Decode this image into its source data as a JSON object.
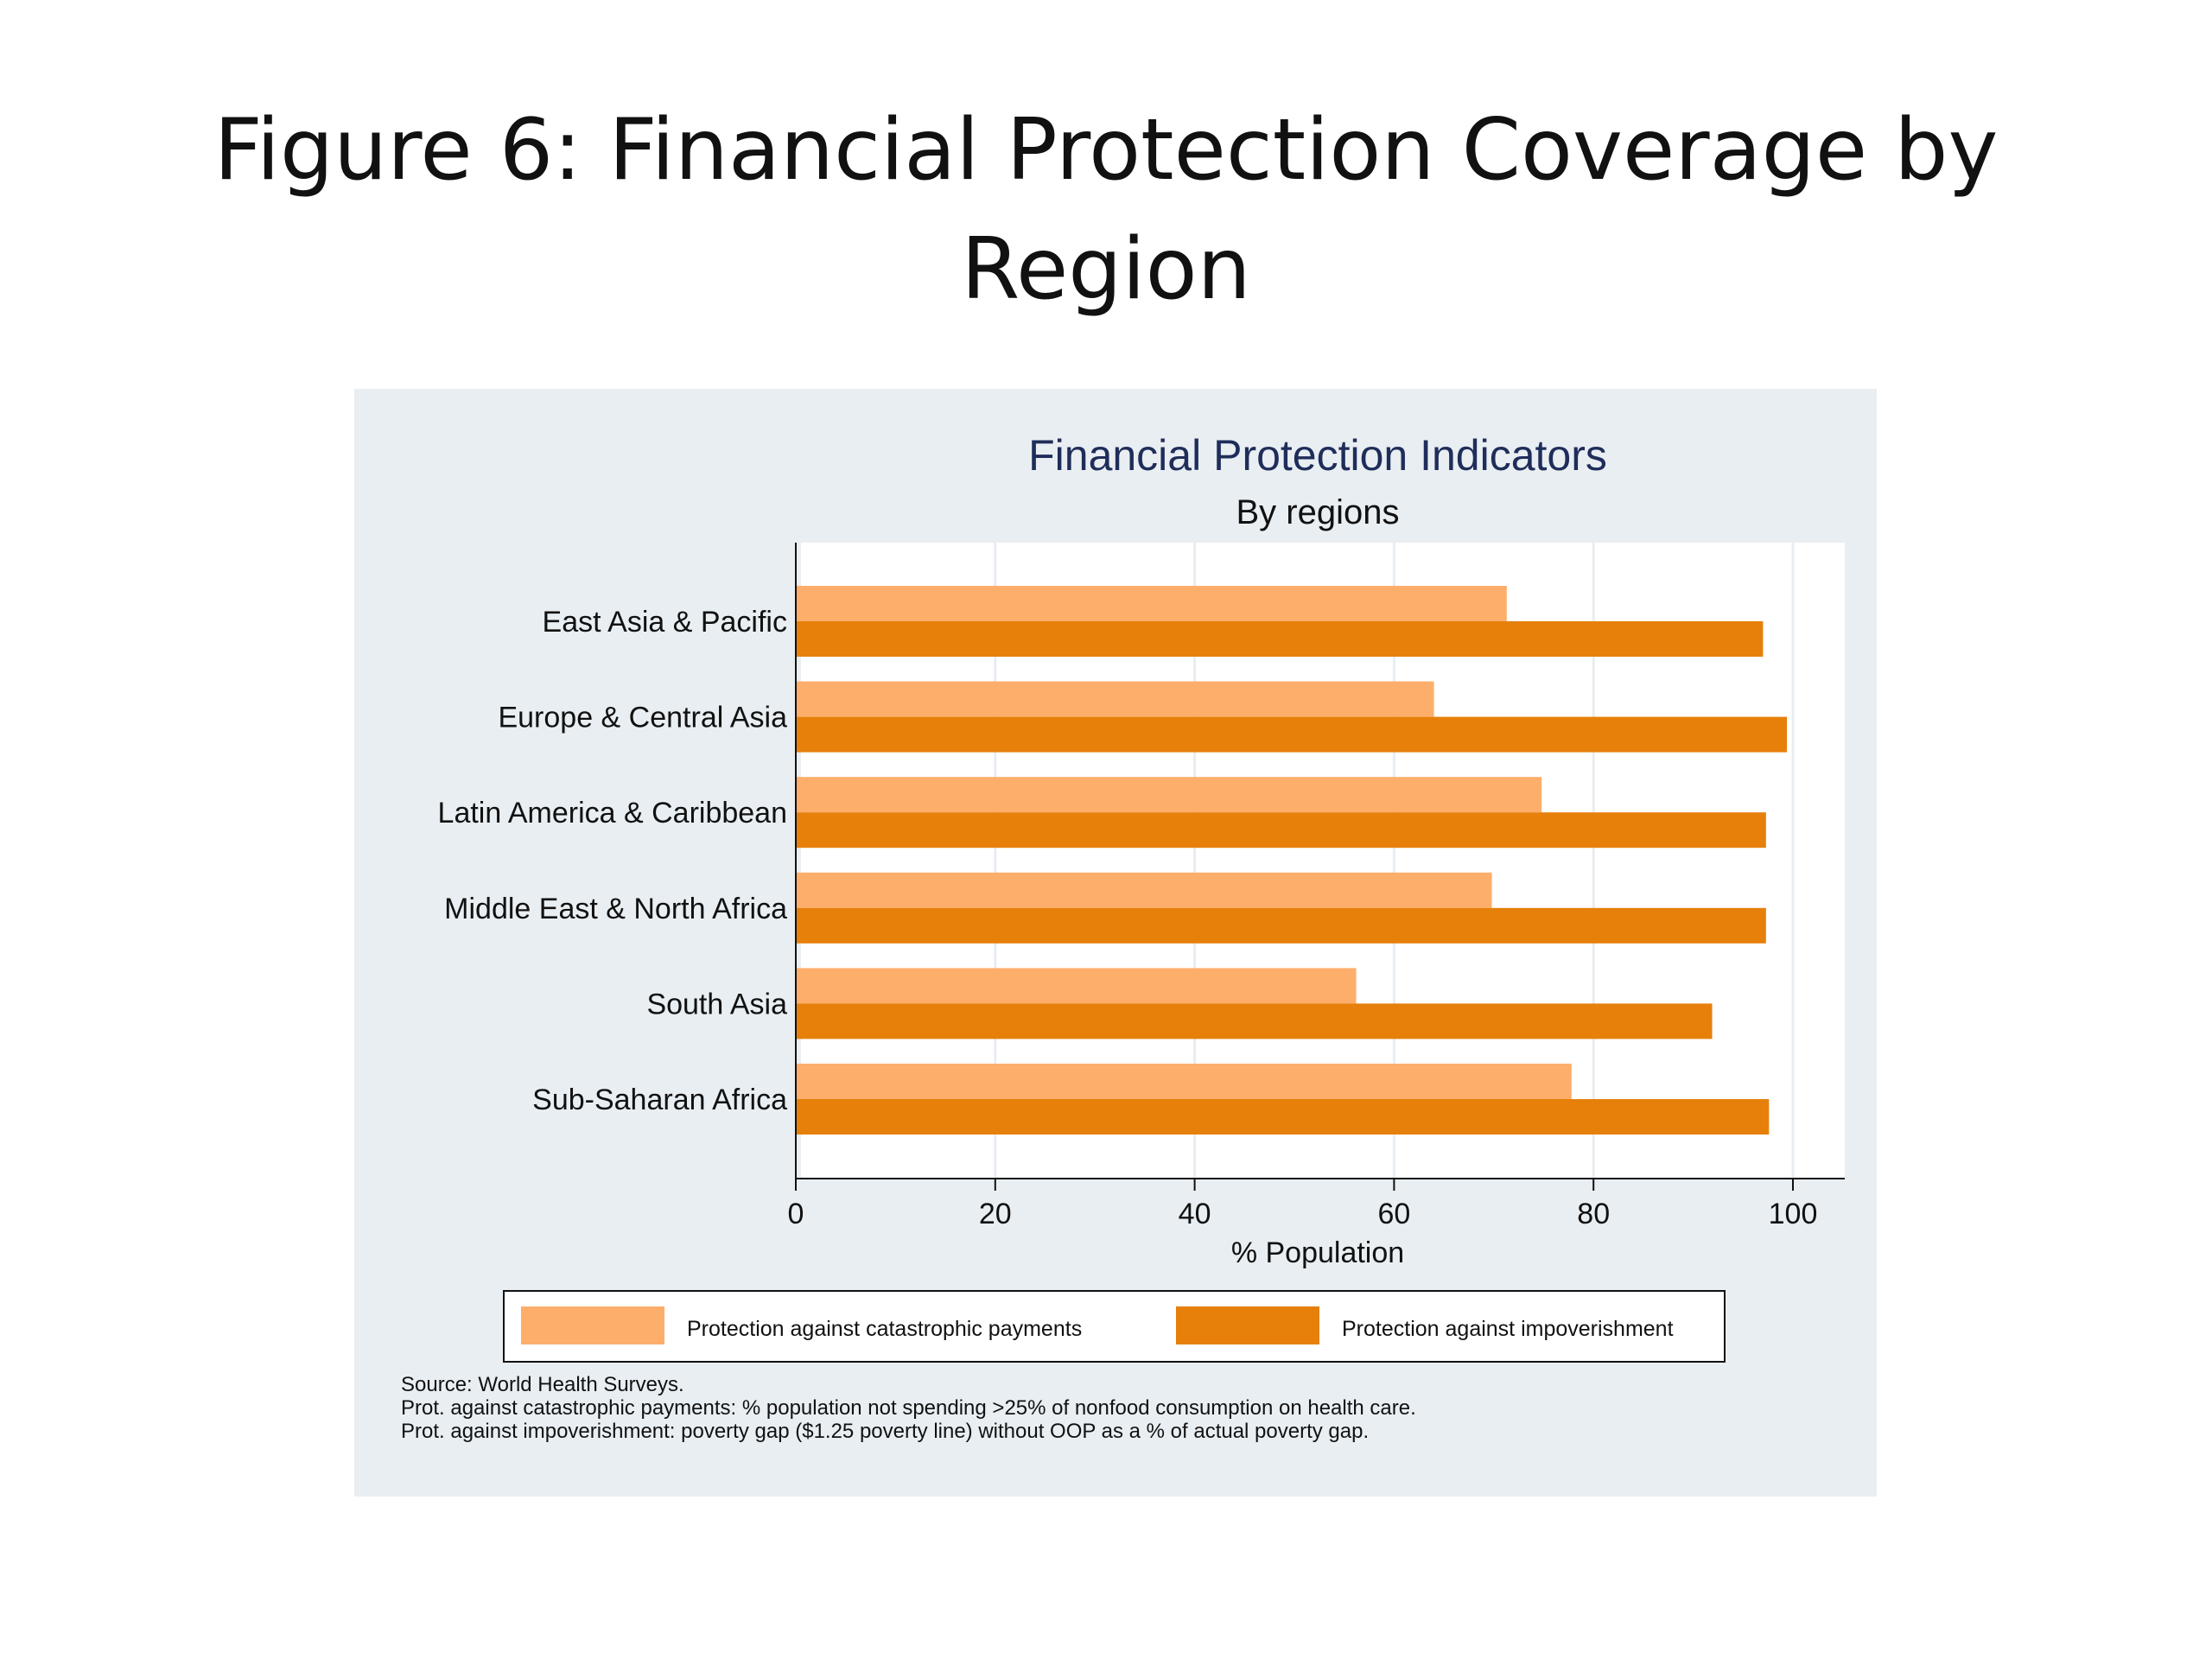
{
  "slide": {
    "title_line1": "Figure 6: Financial Protection Coverage by",
    "title_line2": "Region"
  },
  "chart_data": {
    "type": "bar",
    "orientation": "horizontal",
    "title": "Financial Protection Indicators",
    "subtitle": "By regions",
    "xlabel": "% Population",
    "ylabel": "",
    "xlim": [
      0,
      100
    ],
    "xticks": [
      0,
      20,
      40,
      60,
      80,
      100
    ],
    "grid": true,
    "legend_position": "bottom",
    "categories": [
      "East Asia & Pacific",
      "Europe & Central Asia",
      "Latin America & Caribbean",
      "Middle East & North Africa",
      "South Asia",
      "Sub-Saharan Africa"
    ],
    "series": [
      {
        "name": "Protection against catastrophic payments",
        "color": "#fdae6b",
        "values": [
          71.3,
          64.0,
          74.8,
          69.8,
          56.2,
          77.8
        ]
      },
      {
        "name": "Protection against impoverishment",
        "color": "#e6800b",
        "values": [
          97.0,
          99.4,
          97.3,
          97.3,
          91.9,
          97.6
        ]
      }
    ],
    "notes": [
      "Source: World Health Surveys.",
      "Prot. against catastrophic payments: % population not spending >25% of nonfood consumption on health care.",
      "Prot. against impoverishment: poverty gap ($1.25 poverty line) without OOP as a % of actual poverty gap."
    ]
  }
}
